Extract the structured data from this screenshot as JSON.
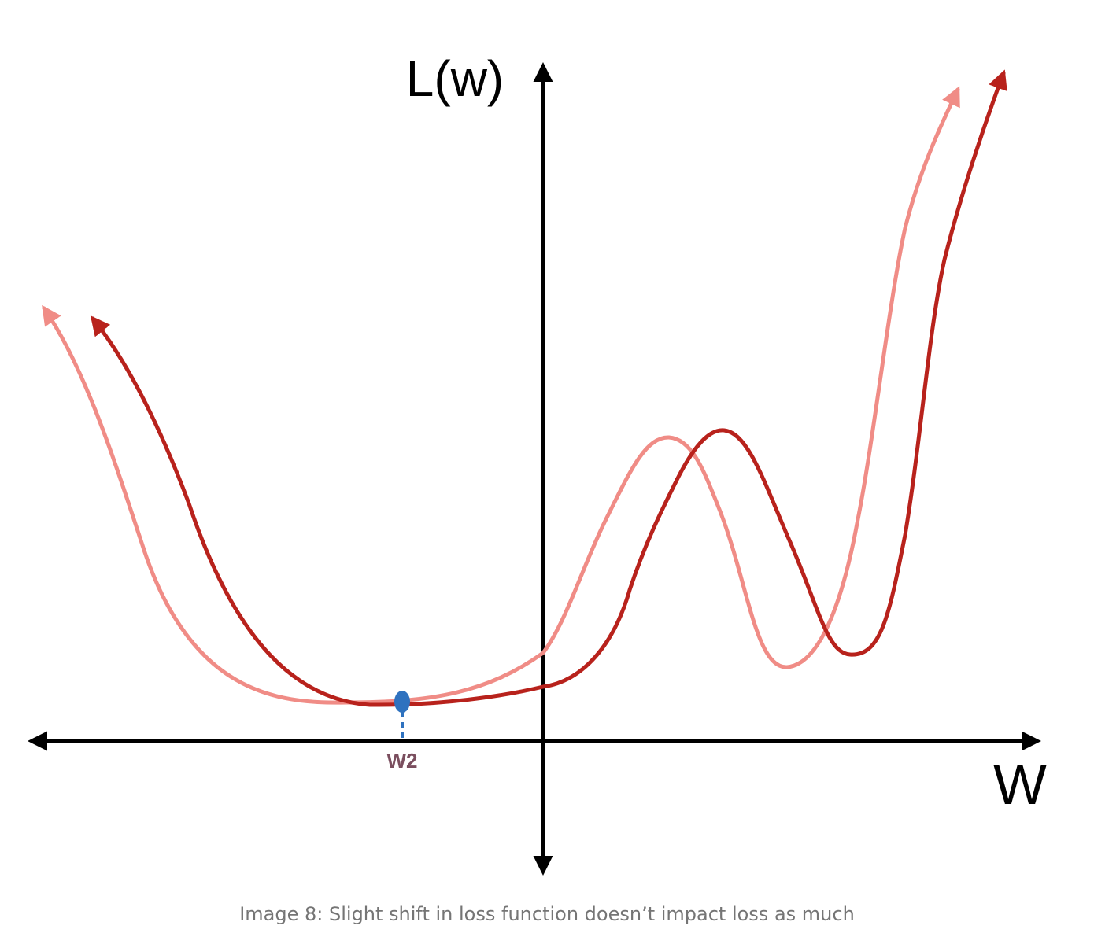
{
  "diagram": {
    "y_axis_label": "L(w)",
    "x_axis_label": "W",
    "marker_label": "W2",
    "colors": {
      "axis": "#000000",
      "original_curve": "#f08c86",
      "shifted_curve": "#b8221c",
      "marker": "#2f72bf",
      "marker_label": "#7a4e5e"
    }
  },
  "caption": "Image 8: Slight shift in loss function doesn’t impact loss as much"
}
